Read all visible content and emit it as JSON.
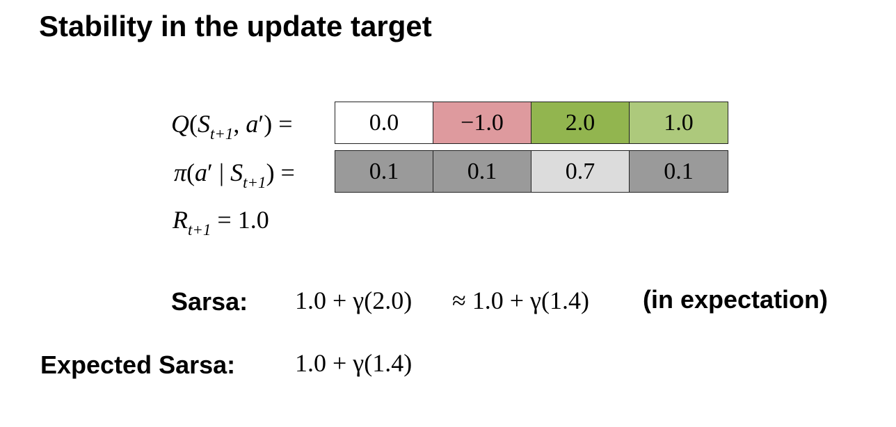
{
  "title": "Stability in the update target",
  "q_row": {
    "values": [
      "0.0",
      "−1.0",
      "2.0",
      "1.0"
    ],
    "colors": [
      "#ffffff",
      "#de9a9e",
      "#92b54f",
      "#adc97c"
    ]
  },
  "pi_row": {
    "values": [
      "0.1",
      "0.1",
      "0.7",
      "0.1"
    ],
    "colors": [
      "#9a9a9a",
      "#9a9a9a",
      "#dcdcdc",
      "#9a9a9a"
    ]
  },
  "reward": {
    "value": "1.0"
  },
  "sarsa": {
    "label": "Sarsa:",
    "target": "1.0 + γ(2.0)",
    "approx": "≈ 1.0 + γ(1.4)",
    "note": "(in expectation)"
  },
  "expected_sarsa": {
    "label": "Expected Sarsa:",
    "target": "1.0 + γ(1.4)"
  }
}
